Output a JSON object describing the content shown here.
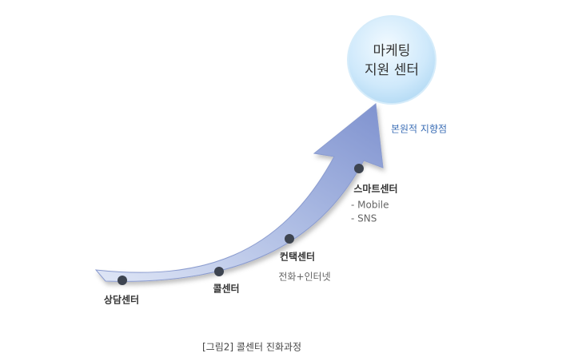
{
  "goal": {
    "lines": [
      "마케팅",
      "지원 센터"
    ],
    "note": "본원적 지향점"
  },
  "stages": [
    {
      "label": "상담센터",
      "details": []
    },
    {
      "label": "콜센터",
      "details": []
    },
    {
      "label": "컨택센터",
      "details": [
        "전화+인터넷"
      ]
    },
    {
      "label": "스마트센터",
      "details": [
        "- Mobile",
        "- SNS"
      ]
    }
  ],
  "caption": "[그림2] 콜센터 진화과정"
}
